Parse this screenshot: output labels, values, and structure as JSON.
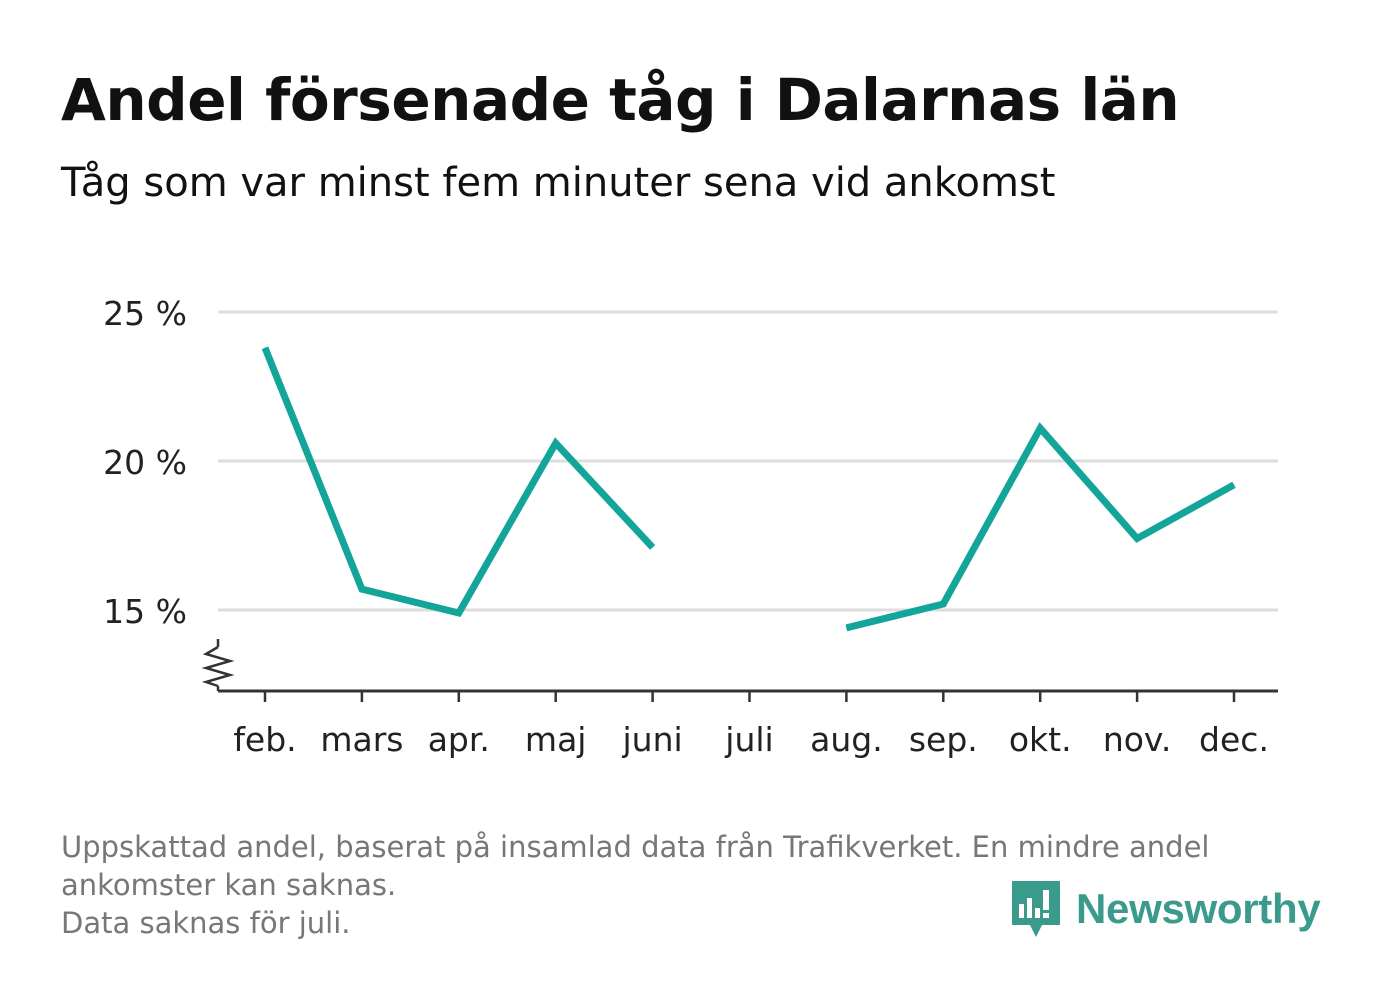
{
  "title": "Andel försenade tåg i Dalarnas län",
  "subtitle": "Tåg som var minst fem minuter sena vid ankomst",
  "footnote": {
    "line1": "Uppskattad andel, baserat på insamlad data från Trafikverket. En mindre andel",
    "line2": "ankomster kan saknas.",
    "line3": "Data saknas för juli."
  },
  "brand": {
    "name": "Newsworthy",
    "color": "#3a9a8c"
  },
  "colors": {
    "line": "#13a49a",
    "grid": "#dddddd",
    "axis": "#333333"
  },
  "chart_data": {
    "type": "line",
    "categories": [
      "feb.",
      "mars",
      "apr.",
      "maj",
      "juni",
      "juli",
      "aug.",
      "sep.",
      "okt.",
      "nov.",
      "dec."
    ],
    "series": [
      {
        "values": [
          23.8,
          15.7,
          14.9,
          20.6,
          17.1,
          null,
          14.4,
          15.2,
          21.1,
          17.4,
          19.2
        ]
      }
    ],
    "yticks": [
      15,
      20,
      25
    ],
    "ytick_labels": [
      "15 %",
      "20 %",
      "25 %"
    ],
    "ylim": [
      12.4,
      25
    ],
    "y_axis_break": true,
    "grid": "horizontal",
    "legend": "none"
  }
}
